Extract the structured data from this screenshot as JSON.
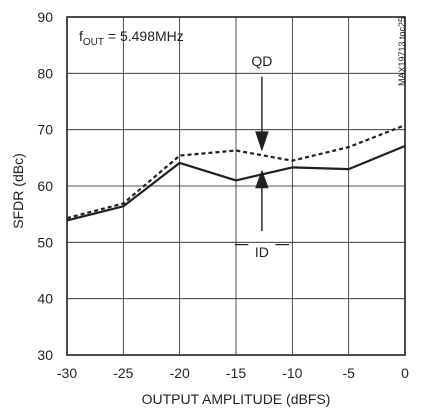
{
  "chart_data": {
    "type": "line",
    "title": "",
    "xlabel": "OUTPUT AMPLITUDE (dBFS)",
    "ylabel": "SFDR (dBc)",
    "xlim": [
      -30,
      0
    ],
    "ylim": [
      30,
      90
    ],
    "x_ticks": [
      -30,
      -25,
      -20,
      -15,
      -10,
      -5,
      0
    ],
    "y_ticks": [
      30,
      40,
      50,
      60,
      70,
      80,
      90
    ],
    "x_tick_labels": [
      "-30",
      "-25",
      "-20",
      "-15",
      "-10",
      "-5",
      "0"
    ],
    "y_tick_labels": [
      "30",
      "40",
      "50",
      "60",
      "70",
      "80",
      "90"
    ],
    "grid": true,
    "x": [
      -30,
      -25,
      -20,
      -15,
      -10,
      -5,
      0
    ],
    "series": [
      {
        "name": "QD",
        "style": "dashed",
        "values": [
          54.3,
          56.9,
          65.4,
          66.3,
          64.5,
          66.9,
          70.8
        ]
      },
      {
        "name": "ID",
        "style": "solid",
        "values": [
          53.9,
          56.4,
          64.1,
          61.0,
          63.3,
          63.0,
          67.1
        ]
      }
    ],
    "annotations": {
      "condition_main": "f",
      "condition_sub": "OUT",
      "condition_rest": " = 5.498MHz",
      "watermark": "MAX19713 toc25"
    },
    "colors": {
      "line": "#231f20",
      "grid": "#231f20"
    }
  }
}
